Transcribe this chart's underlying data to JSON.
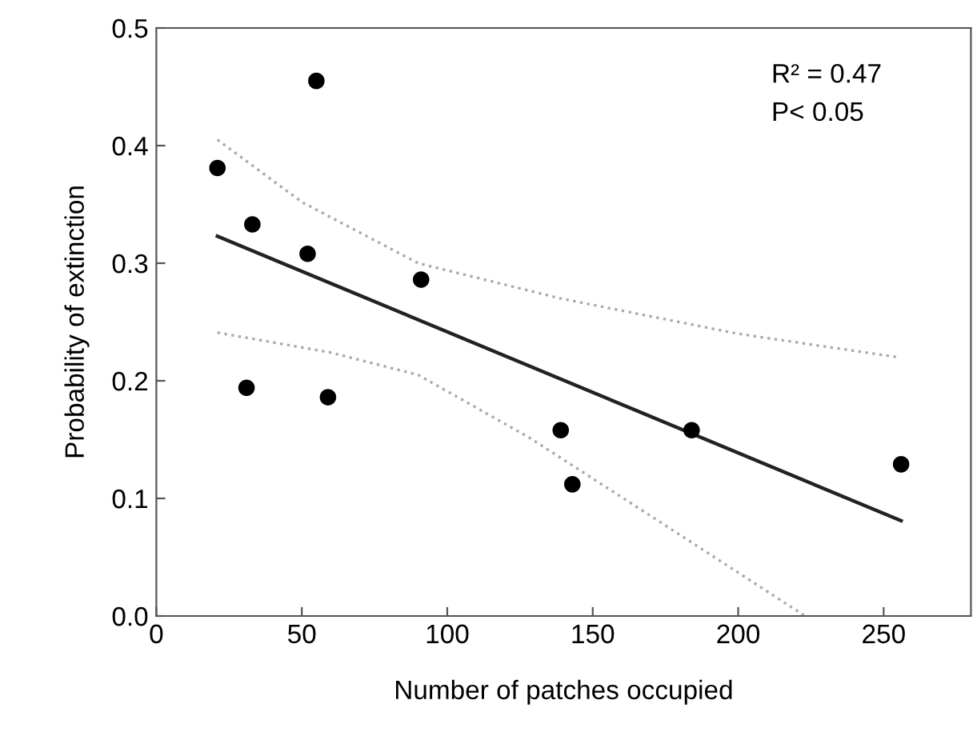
{
  "chart_data": {
    "type": "scatter",
    "xlabel": "Number of patches occupied",
    "ylabel": "Probability of extinction",
    "xlim": [
      0,
      280
    ],
    "xticks": [
      0,
      50,
      100,
      150,
      200,
      250
    ],
    "ylim": [
      0,
      0.5
    ],
    "yticks": [
      {
        "value": 0,
        "label": "0.0"
      },
      0.1,
      0.2,
      0.3,
      0.4,
      0.5
    ],
    "grid": false,
    "annotations": [
      "R² = 0.47",
      "P< 0.05"
    ],
    "series": [
      {
        "marker": "circle",
        "color": "#000000",
        "x": [
          21,
          55,
          33,
          52,
          91,
          31,
          59,
          139,
          143,
          184,
          256
        ],
        "values": [
          0.381,
          0.455,
          0.333,
          0.308,
          0.286,
          0.194,
          0.186,
          0.158,
          0.112,
          0.158,
          0.129
        ]
      },
      {
        "type": "line",
        "line_style": "solid",
        "color": "#222222",
        "x": [
          21,
          256
        ],
        "values": [
          0.323,
          0.081
        ]
      },
      {
        "type": "line",
        "line_style": "dotted",
        "color": "#aaaaaa",
        "x": [
          21,
          50,
          90,
          139,
          200,
          255
        ],
        "values": [
          0.405,
          0.352,
          0.3,
          0.27,
          0.24,
          0.22
        ]
      },
      {
        "type": "line",
        "line_style": "dotted",
        "color": "#aaaaaa",
        "x": [
          21,
          60,
          90,
          128,
          170,
          223
        ],
        "values": [
          0.241,
          0.224,
          0.205,
          0.152,
          0.085,
          0.0
        ]
      }
    ]
  }
}
